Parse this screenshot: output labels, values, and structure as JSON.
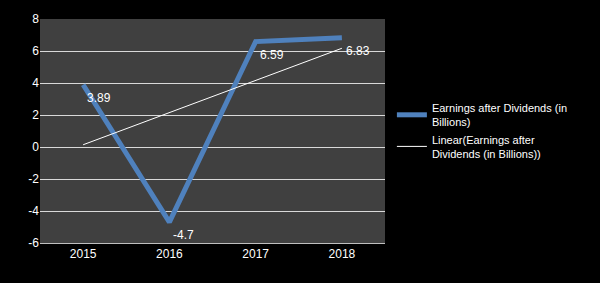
{
  "chart_data": {
    "type": "line",
    "categories": [
      "2015",
      "2016",
      "2017",
      "2018"
    ],
    "series": [
      {
        "name": "Earnings after Dividends (in Billions)",
        "color": "#4f81bd",
        "line_style": "solid",
        "data_labels": true,
        "values": [
          3.89,
          -4.7,
          6.59,
          6.83
        ]
      },
      {
        "name": "Linear(Earnings after Dividends (in Billions))",
        "color": "#ffffff",
        "line_style": "solid",
        "values": [
          0.14,
          2.15,
          4.16,
          6.17
        ]
      }
    ],
    "ylim": [
      -6,
      8
    ],
    "yticks": [
      -6,
      -4,
      -2,
      0,
      2,
      4,
      6,
      8
    ],
    "grid": true,
    "legend": "right"
  }
}
